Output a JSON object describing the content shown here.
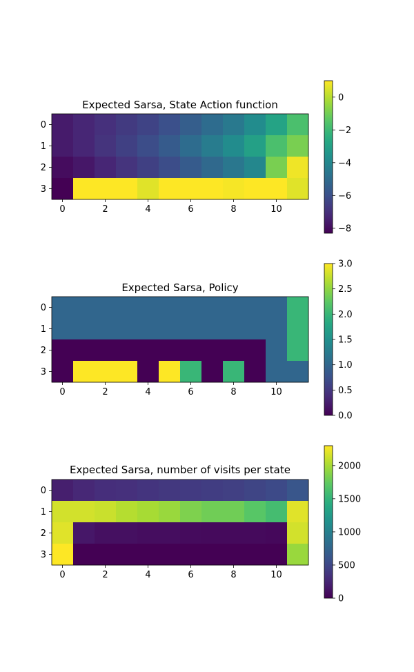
{
  "figure": {},
  "chart_data": [
    {
      "type": "heatmap",
      "title": "Expected Sarsa, State Action function",
      "rows": 4,
      "cols": 12,
      "xticks": [
        0,
        2,
        4,
        6,
        8,
        10
      ],
      "yticks": [
        0,
        1,
        2,
        3
      ],
      "colormap": "viridis",
      "vmin": -8.3,
      "vmax": 1.0,
      "colorbar_ticks": [
        0,
        -2,
        -4,
        -6,
        -8
      ],
      "colorbar_tick_labels": [
        "0",
        "−2",
        "−4",
        "−6",
        "−8"
      ],
      "values": [
        [
          -7.6,
          -7.3,
          -7.0,
          -6.7,
          -6.4,
          -6.0,
          -5.5,
          -5.0,
          -4.5,
          -3.8,
          -2.9,
          -1.7
        ],
        [
          -7.6,
          -7.3,
          -6.9,
          -6.5,
          -6.1,
          -5.6,
          -5.0,
          -4.4,
          -3.8,
          -3.0,
          -1.7,
          -0.9
        ],
        [
          -8.0,
          -7.7,
          -7.3,
          -6.9,
          -6.5,
          -6.1,
          -5.6,
          -5.1,
          -4.6,
          -4.0,
          -0.9,
          0.8
        ],
        [
          -8.3,
          1.0,
          1.0,
          1.0,
          0.6,
          1.0,
          1.0,
          1.0,
          0.9,
          1.0,
          1.0,
          0.6
        ]
      ]
    },
    {
      "type": "heatmap",
      "title": "Expected Sarsa, Policy",
      "rows": 4,
      "cols": 12,
      "xticks": [
        0,
        2,
        4,
        6,
        8,
        10
      ],
      "yticks": [
        0,
        1,
        2,
        3
      ],
      "colormap": "viridis",
      "vmin": 0,
      "vmax": 3,
      "colorbar_ticks": [
        0,
        0.5,
        1,
        1.5,
        2,
        2.5,
        3
      ],
      "colorbar_tick_labels": [
        "0.0",
        "0.5",
        "1.0",
        "1.5",
        "2.0",
        "2.5",
        "3.0"
      ],
      "values": [
        [
          1,
          1,
          1,
          1,
          1,
          1,
          1,
          1,
          1,
          1,
          1,
          2
        ],
        [
          1,
          1,
          1,
          1,
          1,
          1,
          1,
          1,
          1,
          1,
          1,
          2
        ],
        [
          0,
          0,
          0,
          0,
          0,
          0,
          0,
          0,
          0,
          0,
          1,
          2
        ],
        [
          0,
          3,
          3,
          3,
          0,
          3,
          2,
          0,
          2,
          0,
          1,
          1
        ]
      ]
    },
    {
      "type": "heatmap",
      "title": "Expected Sarsa, number of visits per state",
      "rows": 4,
      "cols": 12,
      "xticks": [
        0,
        2,
        4,
        6,
        8,
        10
      ],
      "yticks": [
        0,
        1,
        2,
        3
      ],
      "colormap": "viridis",
      "vmin": 0,
      "vmax": 2300,
      "colorbar_ticks": [
        0,
        500,
        1000,
        1500,
        2000
      ],
      "colorbar_tick_labels": [
        "0",
        "500",
        "1000",
        "1500",
        "2000"
      ],
      "values": [
        [
          200,
          260,
          300,
          320,
          350,
          380,
          400,
          420,
          440,
          480,
          520,
          620
        ],
        [
          2150,
          2150,
          2120,
          2050,
          2000,
          1950,
          1850,
          1800,
          1800,
          1700,
          1600,
          2200
        ],
        [
          2200,
          150,
          100,
          100,
          80,
          80,
          70,
          60,
          60,
          60,
          50,
          2150
        ],
        [
          2300,
          0,
          0,
          0,
          0,
          0,
          0,
          0,
          0,
          0,
          0,
          1950
        ]
      ]
    }
  ]
}
